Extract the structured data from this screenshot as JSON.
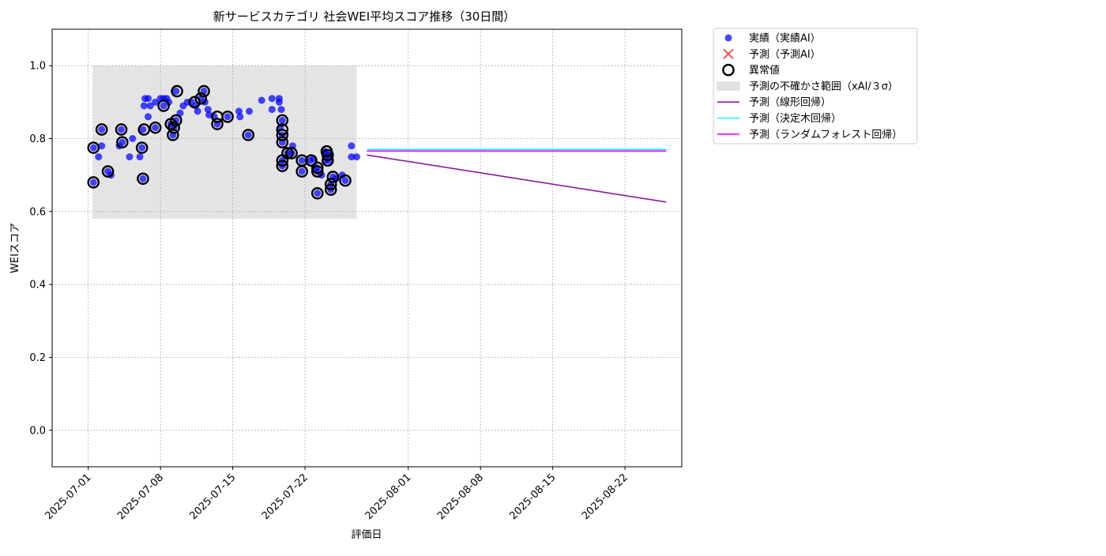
{
  "chart_data": {
    "type": "scatter",
    "title": "新サービスカテゴリ 社会WEI平均スコア推移（30日間）",
    "xlabel": "評価日",
    "ylabel": "WEIスコア",
    "ylim": [
      -0.1,
      1.1
    ],
    "xlim_days": [
      -3.5,
      57.5
    ],
    "x_origin": "2025-07-01",
    "grid": true,
    "legend_position": "outside-top-right",
    "y_ticks": [
      0.0,
      0.2,
      0.4,
      0.6,
      0.8,
      1.0
    ],
    "y_tick_labels": [
      "0.0",
      "0.2",
      "0.4",
      "0.6",
      "0.8",
      "1.0"
    ],
    "x_ticks_days": [
      0,
      7,
      14,
      21,
      31,
      38,
      45,
      52
    ],
    "x_tick_labels": [
      "2025-07-01",
      "2025-07-08",
      "2025-07-15",
      "2025-07-22",
      "2025-08-01",
      "2025-08-08",
      "2025-08-15",
      "2025-08-22"
    ],
    "uncertainty_band": {
      "x_start": 0.4,
      "x_end": 26.0,
      "y_low": 0.58,
      "y_high": 1.0,
      "color": "#e3e3e3"
    },
    "actual": {
      "name": "実績（実績AI）",
      "color": "#0000ff",
      "points": [
        [
          0.5,
          0.68
        ],
        [
          0.5,
          0.775
        ],
        [
          1.0,
          0.75
        ],
        [
          1.3,
          0.78
        ],
        [
          1.3,
          0.825
        ],
        [
          1.9,
          0.71
        ],
        [
          2.2,
          0.7
        ],
        [
          3.0,
          0.78
        ],
        [
          3.2,
          0.825
        ],
        [
          3.3,
          0.79
        ],
        [
          4.0,
          0.75
        ],
        [
          4.3,
          0.8
        ],
        [
          5.0,
          0.75
        ],
        [
          5.2,
          0.775
        ],
        [
          5.3,
          0.69
        ],
        [
          5.3,
          0.825
        ],
        [
          5.4,
          0.89
        ],
        [
          5.5,
          0.91
        ],
        [
          5.8,
          0.91
        ],
        [
          5.8,
          0.86
        ],
        [
          6.0,
          0.89
        ],
        [
          6.5,
          0.83
        ],
        [
          6.5,
          0.9
        ],
        [
          7.0,
          0.91
        ],
        [
          7.3,
          0.89
        ],
        [
          7.3,
          0.91
        ],
        [
          7.6,
          0.91
        ],
        [
          7.8,
          0.9
        ],
        [
          8.0,
          0.84
        ],
        [
          8.2,
          0.81
        ],
        [
          8.3,
          0.83
        ],
        [
          8.5,
          0.85
        ],
        [
          8.5,
          0.93
        ],
        [
          8.9,
          0.87
        ],
        [
          9.2,
          0.89
        ],
        [
          9.6,
          0.9
        ],
        [
          10.0,
          0.9
        ],
        [
          10.4,
          0.89
        ],
        [
          10.6,
          0.875
        ],
        [
          10.9,
          0.91
        ],
        [
          11.2,
          0.93
        ],
        [
          11.3,
          0.9
        ],
        [
          11.6,
          0.88
        ],
        [
          11.7,
          0.865
        ],
        [
          12.2,
          0.86
        ],
        [
          12.5,
          0.84
        ],
        [
          13.5,
          0.86
        ],
        [
          14.6,
          0.875
        ],
        [
          14.7,
          0.86
        ],
        [
          15.5,
          0.81
        ],
        [
          15.6,
          0.875
        ],
        [
          16.8,
          0.905
        ],
        [
          17.8,
          0.88
        ],
        [
          17.8,
          0.91
        ],
        [
          18.5,
          0.91
        ],
        [
          18.5,
          0.9
        ],
        [
          18.6,
          0.83
        ],
        [
          18.7,
          0.88
        ],
        [
          18.8,
          0.85
        ],
        [
          18.8,
          0.81
        ],
        [
          18.8,
          0.79
        ],
        [
          18.8,
          0.74
        ],
        [
          18.8,
          0.725
        ],
        [
          19.3,
          0.76
        ],
        [
          19.7,
          0.76
        ],
        [
          19.8,
          0.78
        ],
        [
          20.7,
          0.74
        ],
        [
          20.7,
          0.71
        ],
        [
          21.5,
          0.74
        ],
        [
          21.8,
          0.745
        ],
        [
          22.1,
          0.72
        ],
        [
          22.2,
          0.71
        ],
        [
          22.2,
          0.65
        ],
        [
          22.6,
          0.7
        ],
        [
          22.9,
          0.765
        ],
        [
          23.0,
          0.74
        ],
        [
          23.1,
          0.76
        ],
        [
          23.3,
          0.74
        ],
        [
          23.4,
          0.755
        ],
        [
          23.5,
          0.66
        ],
        [
          23.5,
          0.675
        ],
        [
          23.7,
          0.695
        ],
        [
          24.0,
          0.69
        ],
        [
          24.6,
          0.7
        ],
        [
          24.9,
          0.685
        ],
        [
          25.5,
          0.75
        ],
        [
          25.5,
          0.78
        ],
        [
          26.0,
          0.75
        ]
      ]
    },
    "anomalies": {
      "name": "異常値",
      "points": [
        [
          0.5,
          0.68
        ],
        [
          0.5,
          0.775
        ],
        [
          1.3,
          0.825
        ],
        [
          1.9,
          0.71
        ],
        [
          3.2,
          0.825
        ],
        [
          3.3,
          0.79
        ],
        [
          5.3,
          0.69
        ],
        [
          5.2,
          0.775
        ],
        [
          5.4,
          0.825
        ],
        [
          6.5,
          0.83
        ],
        [
          7.3,
          0.89
        ],
        [
          8.0,
          0.84
        ],
        [
          8.3,
          0.83
        ],
        [
          8.2,
          0.81
        ],
        [
          8.5,
          0.85
        ],
        [
          8.6,
          0.93
        ],
        [
          10.3,
          0.9
        ],
        [
          10.9,
          0.91
        ],
        [
          11.2,
          0.93
        ],
        [
          12.5,
          0.84
        ],
        [
          12.5,
          0.86
        ],
        [
          13.5,
          0.86
        ],
        [
          15.5,
          0.81
        ],
        [
          18.8,
          0.85
        ],
        [
          18.8,
          0.825
        ],
        [
          18.8,
          0.81
        ],
        [
          18.8,
          0.79
        ],
        [
          18.8,
          0.74
        ],
        [
          18.8,
          0.725
        ],
        [
          19.3,
          0.76
        ],
        [
          19.7,
          0.76
        ],
        [
          20.7,
          0.74
        ],
        [
          20.7,
          0.71
        ],
        [
          21.6,
          0.74
        ],
        [
          22.2,
          0.72
        ],
        [
          22.2,
          0.71
        ],
        [
          22.2,
          0.65
        ],
        [
          23.1,
          0.765
        ],
        [
          23.2,
          0.755
        ],
        [
          23.2,
          0.74
        ],
        [
          23.5,
          0.675
        ],
        [
          23.5,
          0.66
        ],
        [
          23.7,
          0.695
        ],
        [
          24.9,
          0.685
        ]
      ]
    },
    "predicted_ai": {
      "name": "予測（予測AI）",
      "color": "#ff0000",
      "points": []
    },
    "series": [
      {
        "name": "予測（線形回帰）",
        "color": "#8b1a9c",
        "x": [
          27,
          56
        ],
        "values": [
          0.755,
          0.626
        ]
      },
      {
        "name": "予測（決定木回帰）",
        "color": "#00ffff",
        "x": [
          27,
          56
        ],
        "values": [
          0.77,
          0.77
        ]
      },
      {
        "name": "予測（ランダムフォレスト回帰）",
        "color": "#ff00ff",
        "x": [
          27,
          56
        ],
        "values": [
          0.766,
          0.766
        ]
      }
    ],
    "legend": [
      {
        "label": "実績（実績AI）",
        "kind": "scatter",
        "color": "#0000ff"
      },
      {
        "label": "予測（予測AI）",
        "kind": "cross",
        "color": "#ff0000"
      },
      {
        "label": "異常値",
        "kind": "ring",
        "color": "#000000"
      },
      {
        "label": "予測の不確かさ範囲（xAI/３σ）",
        "kind": "patch",
        "color": "#e3e3e3"
      },
      {
        "label": "予測（線形回帰）",
        "kind": "line",
        "color": "#8b1a9c"
      },
      {
        "label": "予測（決定木回帰）",
        "kind": "line",
        "color": "#00ffff"
      },
      {
        "label": "予測（ランダムフォレスト回帰）",
        "kind": "line",
        "color": "#ff00ff"
      }
    ]
  }
}
